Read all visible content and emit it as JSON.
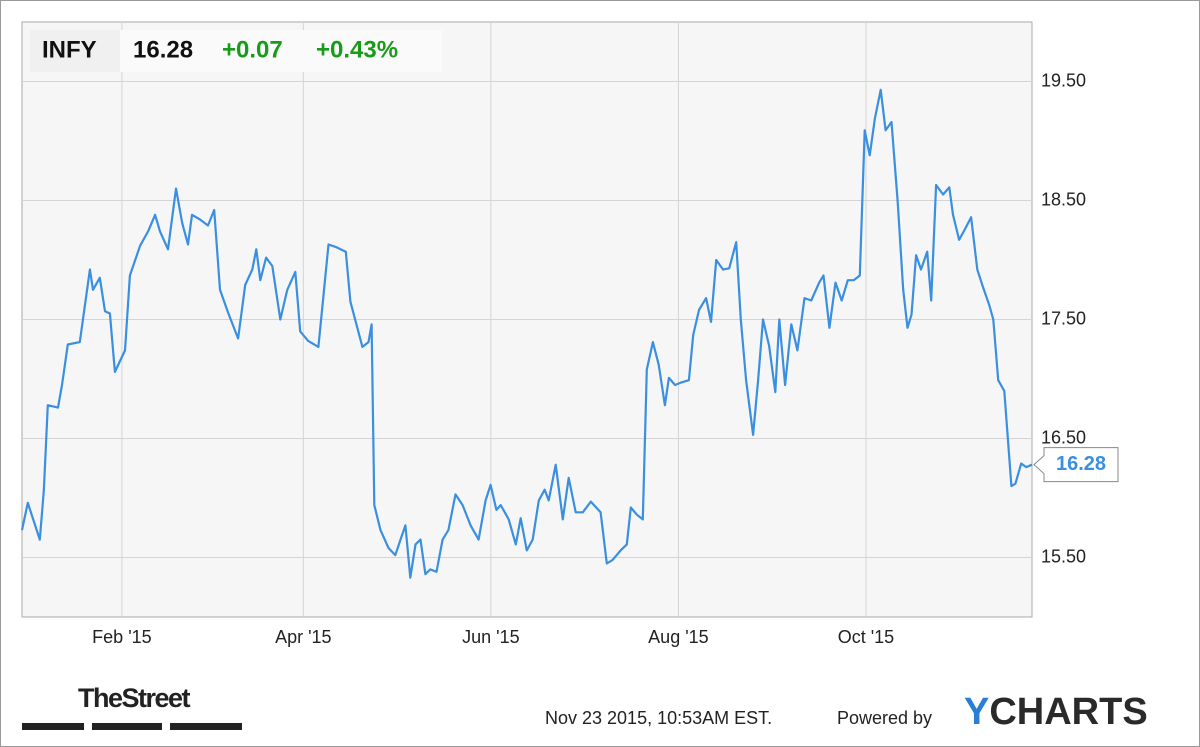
{
  "quote": {
    "symbol": "INFY",
    "price": "16.28",
    "change": "+0.07",
    "change_percent": "+0.43%"
  },
  "chart_data": {
    "type": "line",
    "x": [
      -1.5,
      0.4,
      4.3,
      5.6,
      6.9,
      10.2,
      11.5,
      13.4,
      17.3,
      20.6,
      21.6,
      23.8,
      25.5,
      27.1,
      28.7,
      32,
      33.6,
      36.9,
      39.5,
      41.8,
      43.4,
      46,
      48.6,
      50.6,
      52.5,
      53.8,
      56.4,
      59,
      61,
      62.9,
      65.5,
      68.8,
      71.1,
      73.4,
      74.7,
      76,
      77.9,
      79.9,
      82.5,
      84.8,
      87.4,
      89,
      91.6,
      94.9,
      98.2,
      100.5,
      103.8,
      105.3,
      109.2,
      111.2,
      112.2,
      113.1,
      115.1,
      117.7,
      119.9,
      121.6,
      123.2,
      124.8,
      126.5,
      128.1,
      129.7,
      131.3,
      133.3,
      135.3,
      137.2,
      139.5,
      141.8,
      144.4,
      147,
      149.3,
      150.9,
      152.8,
      154.2,
      156.8,
      159.1,
      160.7,
      162.7,
      164.6,
      166.6,
      168.5,
      169.8,
      172.1,
      174.4,
      176.3,
      178.6,
      180.9,
      183.5,
      186.7,
      188.7,
      190.6,
      193.2,
      195.2,
      196.5,
      198.5,
      200.4,
      201.7,
      203.7,
      205.6,
      207.6,
      208.9,
      210.9,
      212.8,
      215.4,
      216.8,
      218.7,
      221,
      222.6,
      224.3,
      226.5,
      228.5,
      230.8,
      232.3,
      234,
      236.3,
      237.9,
      239.5,
      241.5,
      243.5,
      244.8,
      246.7,
      248.7,
      250.7,
      253,
      255.2,
      257.8,
      259.2,
      261.1,
      263.1,
      265.1,
      267.1,
      269,
      271,
      272.6,
      274.2,
      275.9,
      277.8,
      279.4,
      281.3,
      283.3,
      285.1,
      286.5,
      287.8,
      289.3,
      290.9,
      292.9,
      294.2,
      295.8,
      298.1,
      300.1,
      301.3,
      303.3,
      305.2,
      307.2,
      309.2,
      311.1,
      313.1,
      314.4,
      316,
      318,
      320.3,
      321.6,
      323.5,
      325.1,
      327
    ],
    "series": [
      {
        "color": "#3a8fe0",
        "values": [
          15.73,
          15.96,
          15.65,
          16.06,
          16.78,
          16.76,
          16.95,
          17.29,
          17.31,
          17.92,
          17.75,
          17.85,
          17.57,
          17.55,
          17.06,
          17.24,
          17.87,
          18.12,
          18.24,
          18.38,
          18.24,
          18.09,
          18.6,
          18.31,
          18.13,
          18.38,
          18.34,
          18.29,
          18.42,
          17.75,
          17.56,
          17.34,
          17.79,
          17.92,
          18.09,
          17.83,
          18.02,
          17.95,
          17.5,
          17.75,
          17.9,
          17.4,
          17.32,
          17.27,
          18.13,
          18.11,
          18.07,
          17.65,
          17.27,
          17.31,
          17.46,
          15.94,
          15.73,
          15.58,
          15.52,
          15.65,
          15.77,
          15.33,
          15.61,
          15.65,
          15.36,
          15.4,
          15.38,
          15.65,
          15.73,
          16.03,
          15.94,
          15.77,
          15.65,
          15.98,
          16.11,
          15.9,
          15.94,
          15.82,
          15.61,
          15.83,
          15.56,
          15.65,
          15.98,
          16.07,
          15.98,
          16.28,
          15.82,
          16.17,
          15.88,
          15.88,
          15.97,
          15.88,
          15.45,
          15.48,
          15.56,
          15.61,
          15.92,
          15.86,
          15.82,
          17.08,
          17.31,
          17.12,
          16.78,
          17.01,
          16.95,
          16.97,
          16.99,
          17.37,
          17.58,
          17.68,
          17.48,
          18,
          17.92,
          17.93,
          18.15,
          17.5,
          16.99,
          16.53,
          16.99,
          17.5,
          17.28,
          16.89,
          17.5,
          16.95,
          17.46,
          17.24,
          17.68,
          17.66,
          17.81,
          17.87,
          17.43,
          17.81,
          17.66,
          17.83,
          17.83,
          17.87,
          19.09,
          18.88,
          19.19,
          19.43,
          19.09,
          19.16,
          18.5,
          17.75,
          17.43,
          17.54,
          18.04,
          17.92,
          18.07,
          17.66,
          18.63,
          18.55,
          18.61,
          18.38,
          18.17,
          18.26,
          18.36,
          17.92,
          17.77,
          17.62,
          17.5,
          16.99,
          16.9,
          16.1,
          16.12,
          16.29,
          16.26,
          16.28
        ]
      }
    ],
    "xlim": [
      -1.5,
      327
    ],
    "xticks": [
      {
        "value": 31,
        "label": "Feb '15"
      },
      {
        "value": 90,
        "label": "Apr '15"
      },
      {
        "value": 151,
        "label": "Jun '15"
      },
      {
        "value": 212,
        "label": "Aug '15"
      },
      {
        "value": 273,
        "label": "Oct '15"
      }
    ],
    "ylim": [
      15,
      20
    ],
    "yticks": [
      {
        "value": 15.5,
        "label": "15.50"
      },
      {
        "value": 16.5,
        "label": "16.50"
      },
      {
        "value": 17.5,
        "label": "17.50"
      },
      {
        "value": 18.5,
        "label": "18.50"
      },
      {
        "value": 19.5,
        "label": "19.50"
      }
    ],
    "grid": true
  },
  "footer": {
    "source": "TheStreet",
    "timestamp": "Nov 23 2015, 10:53AM EST.",
    "powered_by": "Powered by",
    "logo": {
      "mark": "Y",
      "text": "CHARTS"
    }
  }
}
